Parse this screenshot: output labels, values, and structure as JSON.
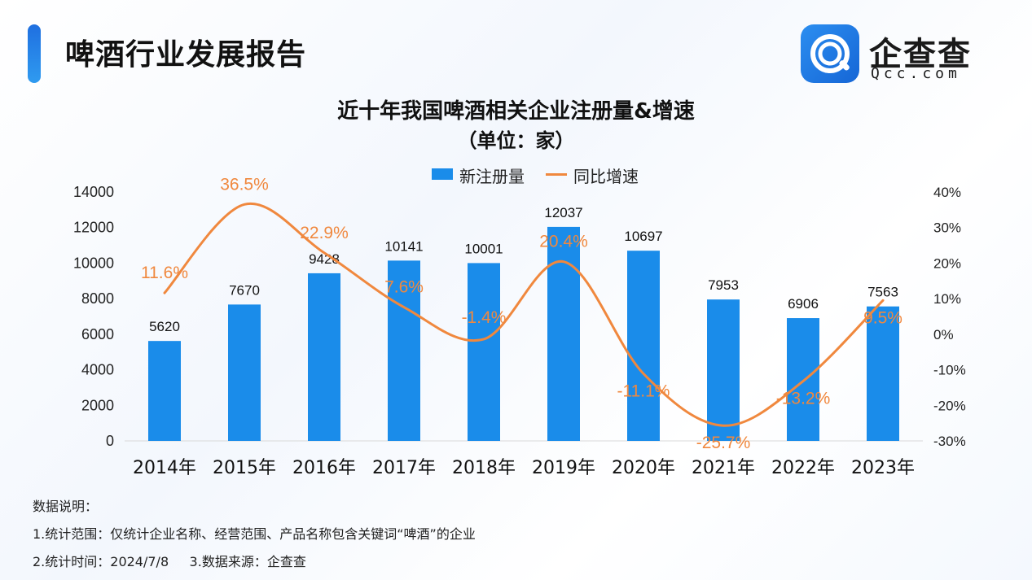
{
  "header": {
    "title": "啤酒行业发展报告",
    "logo_cn": "企查查",
    "logo_en": "Qcc.com"
  },
  "colors": {
    "accent": "#1f6fe0",
    "bar": "#1a8cea",
    "line": "#f0883e"
  },
  "chart_data": {
    "type": "bar",
    "title": "近十年我国啤酒相关企业注册量&增速",
    "subtitle": "（单位：家）",
    "categories": [
      "2014年",
      "2015年",
      "2016年",
      "2017年",
      "2018年",
      "2019年",
      "2020年",
      "2021年",
      "2022年",
      "2023年"
    ],
    "series": [
      {
        "name": "新注册量",
        "type": "bar",
        "axis": "left",
        "values": [
          5620,
          7670,
          9428,
          10141,
          10001,
          12037,
          10697,
          7953,
          6906,
          7563
        ]
      },
      {
        "name": "同比增速",
        "type": "line",
        "axis": "right",
        "values": [
          11.6,
          36.5,
          22.9,
          7.6,
          -1.4,
          20.4,
          -11.1,
          -25.7,
          -13.2,
          9.5
        ],
        "labels": [
          "11.6%",
          "36.5%",
          "22.9%",
          "7.6%",
          "-1.4%",
          "20.4%",
          "-11.1%",
          "-25.7%",
          "-13.2%",
          "9.5%"
        ]
      }
    ],
    "y_left": {
      "min": 0,
      "max": 14000,
      "ticks": [
        "0",
        "2000",
        "4000",
        "6000",
        "8000",
        "10000",
        "12000",
        "14000"
      ]
    },
    "y_right": {
      "min": -30,
      "max": 40,
      "ticks": [
        "-30%",
        "-20%",
        "-10%",
        "0%",
        "10%",
        "20%",
        "30%",
        "40%"
      ]
    },
    "legend_placement": "top-center",
    "grid": false
  },
  "notes": {
    "heading": "数据说明：",
    "line1": "1.统计范围：仅统计企业名称、经营范围、产品名称包含关键词“啤酒”的企业",
    "line2": "2.统计时间：2024/7/8     3.数据来源：企查查"
  }
}
